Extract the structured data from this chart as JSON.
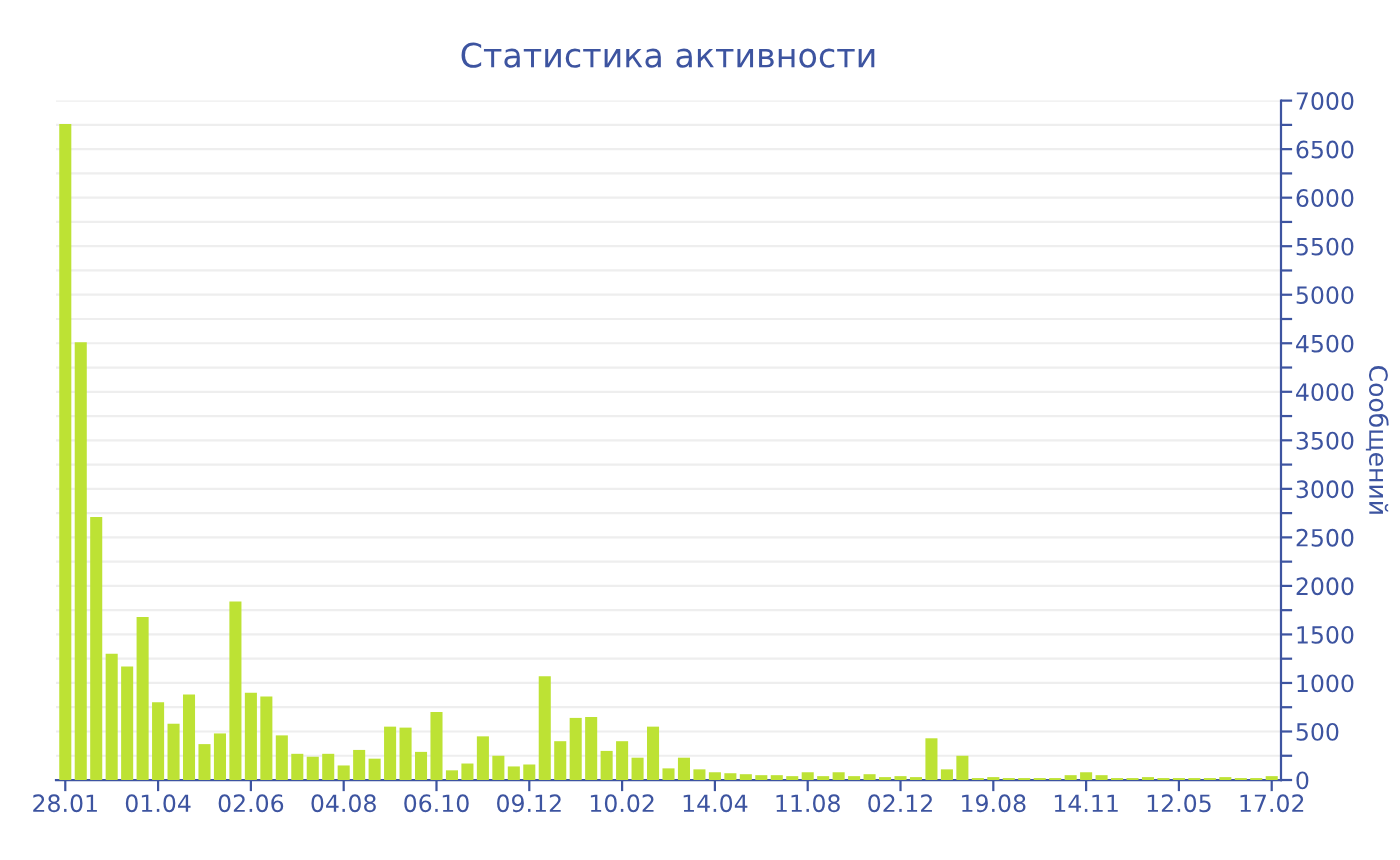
{
  "chart_data": {
    "type": "bar",
    "title": "Статистика активности",
    "ylabel": "Сообщений",
    "categories": [
      "28.01",
      null,
      null,
      null,
      null,
      null,
      "01.04",
      null,
      null,
      null,
      null,
      null,
      "02.06",
      null,
      null,
      null,
      null,
      null,
      "04.08",
      null,
      null,
      null,
      null,
      null,
      "06.10",
      null,
      null,
      null,
      null,
      null,
      "09.12",
      null,
      null,
      null,
      null,
      null,
      "10.02",
      null,
      null,
      null,
      null,
      null,
      "14.04",
      null,
      null,
      null,
      null,
      null,
      "11.08",
      null,
      null,
      null,
      null,
      null,
      "02.12",
      null,
      null,
      null,
      null,
      null,
      "19.08",
      null,
      null,
      null,
      null,
      null,
      "14.11",
      null,
      null,
      null,
      null,
      null,
      "12.05",
      null,
      null,
      null,
      null,
      null,
      "17.02"
    ],
    "values": [
      6760,
      4510,
      2710,
      1300,
      1170,
      1680,
      800,
      580,
      880,
      370,
      480,
      1840,
      900,
      860,
      460,
      270,
      240,
      270,
      150,
      310,
      220,
      550,
      540,
      290,
      700,
      100,
      170,
      450,
      250,
      140,
      160,
      1070,
      400,
      640,
      650,
      300,
      400,
      230,
      550,
      120,
      230,
      110,
      80,
      70,
      60,
      50,
      50,
      40,
      80,
      40,
      80,
      40,
      60,
      30,
      40,
      30,
      430,
      110,
      250,
      20,
      30,
      20,
      20,
      20,
      20,
      50,
      80,
      50,
      20,
      20,
      30,
      20,
      20,
      20,
      20,
      30,
      20,
      20,
      40
    ],
    "color": "#bde234",
    "ylim": [
      0,
      7000
    ],
    "yticks": [
      0,
      {
        "value": 250,
        "label": null
      },
      500,
      {
        "value": 750,
        "label": null
      },
      1000,
      {
        "value": 1250,
        "label": null
      },
      1500,
      {
        "value": 1750,
        "label": null
      },
      2000,
      {
        "value": 2250,
        "label": null
      },
      2500,
      {
        "value": 2750,
        "label": null
      },
      3000,
      {
        "value": 3250,
        "label": null
      },
      3500,
      {
        "value": 3750,
        "label": null
      },
      4000,
      {
        "value": 4250,
        "label": null
      },
      4500,
      {
        "value": 4750,
        "label": null
      },
      5000,
      {
        "value": 5250,
        "label": null
      },
      5500,
      {
        "value": 5750,
        "label": null
      },
      6000,
      {
        "value": 6250,
        "label": null
      },
      6500,
      {
        "value": 6750,
        "label": null
      },
      7000
    ],
    "grid": "y"
  }
}
